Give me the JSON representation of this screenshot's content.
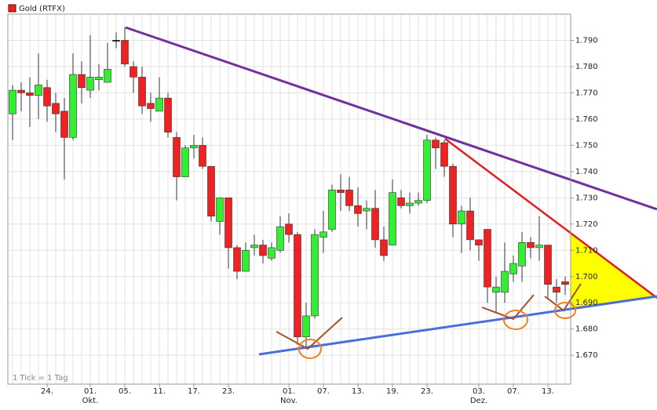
{
  "chart_data": {
    "type": "candlestick",
    "footer": "1 Tick = 1 Tag",
    "categories": [
      null,
      null,
      null,
      null,
      "24.",
      null,
      null,
      null,
      null,
      "01.",
      null,
      null,
      null,
      "05.",
      null,
      null,
      null,
      "11.",
      null,
      null,
      null,
      "17.",
      null,
      null,
      null,
      "23.",
      null,
      null,
      null,
      null,
      null,
      null,
      "01.",
      null,
      null,
      null,
      "07.",
      null,
      null,
      null,
      "13.",
      null,
      null,
      null,
      "19.",
      null,
      null,
      null,
      "23.",
      null,
      null,
      null,
      null,
      null,
      "03.",
      null,
      null,
      null,
      "07.",
      null,
      null,
      null,
      "13.",
      null,
      null
    ],
    "months": [
      null,
      null,
      null,
      null,
      null,
      null,
      null,
      null,
      null,
      "Okt.",
      null,
      null,
      null,
      null,
      null,
      null,
      null,
      null,
      null,
      null,
      null,
      null,
      null,
      null,
      null,
      null,
      null,
      null,
      null,
      null,
      null,
      null,
      "Nov.",
      null,
      null,
      null,
      null,
      null,
      null,
      null,
      null,
      null,
      null,
      null,
      null,
      null,
      null,
      null,
      null,
      null,
      null,
      null,
      null,
      null,
      "Dez.",
      null,
      null,
      null,
      null,
      null,
      null,
      null,
      null,
      null,
      null
    ],
    "series": [
      {
        "name": "Gold (RTFX)",
        "up_color": "#33ee33",
        "down_color": "#ee2222",
        "flat_color": "#000000",
        "open": [
          1.762,
          1.771,
          1.77,
          1.769,
          1.772,
          1.766,
          1.763,
          1.753,
          1.777,
          1.771,
          1.775,
          1.774,
          1.79,
          1.79,
          1.78,
          1.776,
          1.766,
          1.763,
          1.768,
          1.753,
          1.738,
          1.749,
          1.75,
          1.742,
          1.721,
          1.73,
          1.711,
          1.702,
          1.711,
          1.712,
          1.707,
          1.71,
          1.72,
          1.716,
          1.677,
          1.685,
          1.715,
          1.718,
          1.733,
          1.733,
          1.727,
          1.725,
          1.726,
          1.714,
          1.712,
          1.73,
          1.727,
          1.728,
          1.729,
          1.752,
          1.751,
          1.742,
          1.72,
          1.725,
          1.714,
          1.718,
          1.694,
          1.694,
          1.701,
          1.704,
          1.713,
          1.711,
          1.712,
          1.696,
          1.698
        ],
        "high": [
          1.773,
          1.774,
          1.776,
          1.785,
          1.775,
          1.77,
          1.768,
          1.785,
          1.782,
          1.792,
          1.781,
          1.789,
          1.793,
          1.795,
          1.782,
          1.78,
          1.77,
          1.776,
          1.77,
          1.755,
          1.75,
          1.754,
          1.753,
          1.742,
          1.73,
          1.73,
          1.712,
          1.713,
          1.716,
          1.714,
          1.713,
          1.723,
          1.724,
          1.717,
          1.69,
          1.718,
          1.725,
          1.735,
          1.739,
          1.738,
          1.734,
          1.729,
          1.733,
          1.719,
          1.737,
          1.733,
          1.732,
          1.732,
          1.754,
          1.753,
          1.752,
          1.743,
          1.727,
          1.73,
          1.714,
          1.718,
          1.7,
          1.713,
          1.708,
          1.717,
          1.715,
          1.723,
          1.712,
          1.699,
          1.7
        ],
        "low": [
          1.752,
          1.763,
          1.757,
          1.76,
          1.759,
          1.755,
          1.737,
          1.752,
          1.766,
          1.768,
          1.771,
          1.774,
          1.787,
          1.78,
          1.77,
          1.762,
          1.759,
          1.763,
          1.753,
          1.729,
          1.738,
          1.745,
          1.741,
          1.721,
          1.716,
          1.703,
          1.699,
          1.702,
          1.708,
          1.705,
          1.706,
          1.709,
          1.713,
          1.674,
          1.673,
          1.684,
          1.709,
          1.717,
          1.725,
          1.725,
          1.719,
          1.718,
          1.711,
          1.706,
          1.712,
          1.726,
          1.724,
          1.727,
          1.728,
          1.741,
          1.738,
          1.715,
          1.709,
          1.71,
          1.706,
          1.69,
          1.686,
          1.69,
          1.698,
          1.698,
          1.707,
          1.706,
          1.692,
          1.69,
          1.693
        ],
        "close": [
          1.771,
          1.77,
          1.769,
          1.773,
          1.765,
          1.762,
          1.753,
          1.777,
          1.772,
          1.776,
          1.776,
          1.779,
          1.79,
          1.781,
          1.776,
          1.765,
          1.764,
          1.768,
          1.755,
          1.738,
          1.749,
          1.75,
          1.742,
          1.723,
          1.73,
          1.711,
          1.702,
          1.71,
          1.712,
          1.708,
          1.711,
          1.719,
          1.716,
          1.677,
          1.685,
          1.716,
          1.717,
          1.733,
          1.732,
          1.727,
          1.724,
          1.726,
          1.714,
          1.708,
          1.732,
          1.727,
          1.728,
          1.729,
          1.752,
          1.749,
          1.742,
          1.72,
          1.725,
          1.714,
          1.712,
          1.696,
          1.696,
          1.702,
          1.705,
          1.713,
          1.711,
          1.712,
          1.697,
          1.694,
          1.697
        ]
      }
    ],
    "ylim": [
      1.659,
      1.8
    ],
    "yticks": [
      {
        "value": 1.67,
        "label": "1.670"
      },
      {
        "value": 1.68,
        "label": "1.680"
      },
      {
        "value": 1.69,
        "label": "1.690"
      },
      {
        "value": 1.7,
        "label": "1.700"
      },
      {
        "value": 1.71,
        "label": "1.710"
      },
      {
        "value": 1.72,
        "label": "1.720"
      },
      {
        "value": 1.73,
        "label": "1.730"
      },
      {
        "value": 1.74,
        "label": "1.740"
      },
      {
        "value": 1.75,
        "label": "1.750"
      },
      {
        "value": 1.76,
        "label": "1.760"
      },
      {
        "value": 1.77,
        "label": "1.770"
      },
      {
        "value": 1.78,
        "label": "1.780"
      },
      {
        "value": 1.79,
        "label": "1.790"
      }
    ],
    "grid": true
  }
}
